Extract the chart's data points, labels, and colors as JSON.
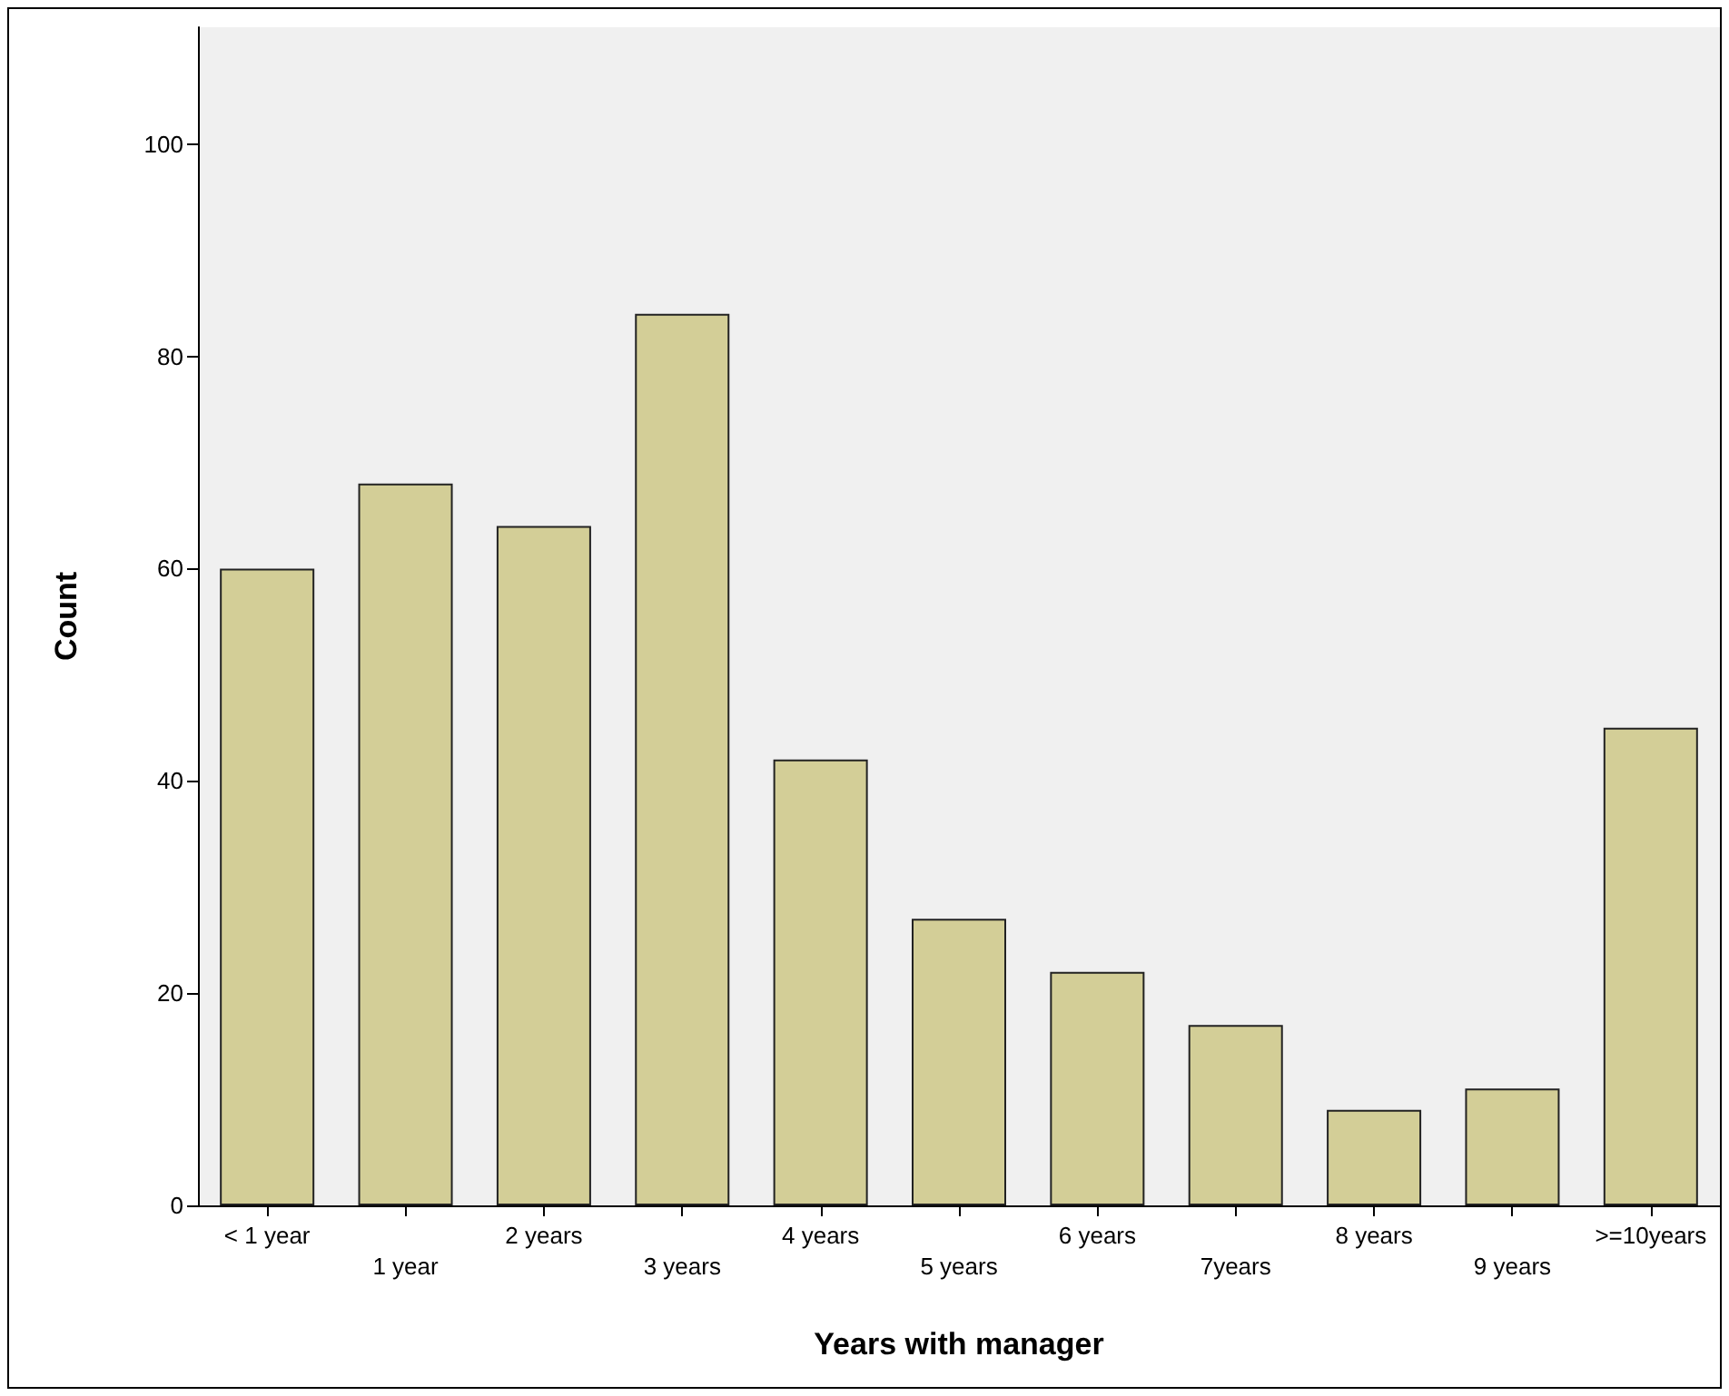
{
  "chart_data": {
    "type": "bar",
    "xlabel": "Years with manager",
    "ylabel": "Count",
    "categories": [
      "< 1 year",
      "1 year",
      "2 years",
      "3 years",
      "4 years",
      "5 years",
      "6 years",
      "7years",
      "8 years",
      "9 years",
      ">=10years"
    ],
    "values": [
      60,
      68,
      64,
      84,
      42,
      27,
      22,
      17,
      9,
      11,
      45
    ],
    "color": "#d3ce97",
    "ylim": [
      0,
      111
    ],
    "yticks": [
      0,
      20,
      40,
      60,
      80,
      100
    ]
  }
}
